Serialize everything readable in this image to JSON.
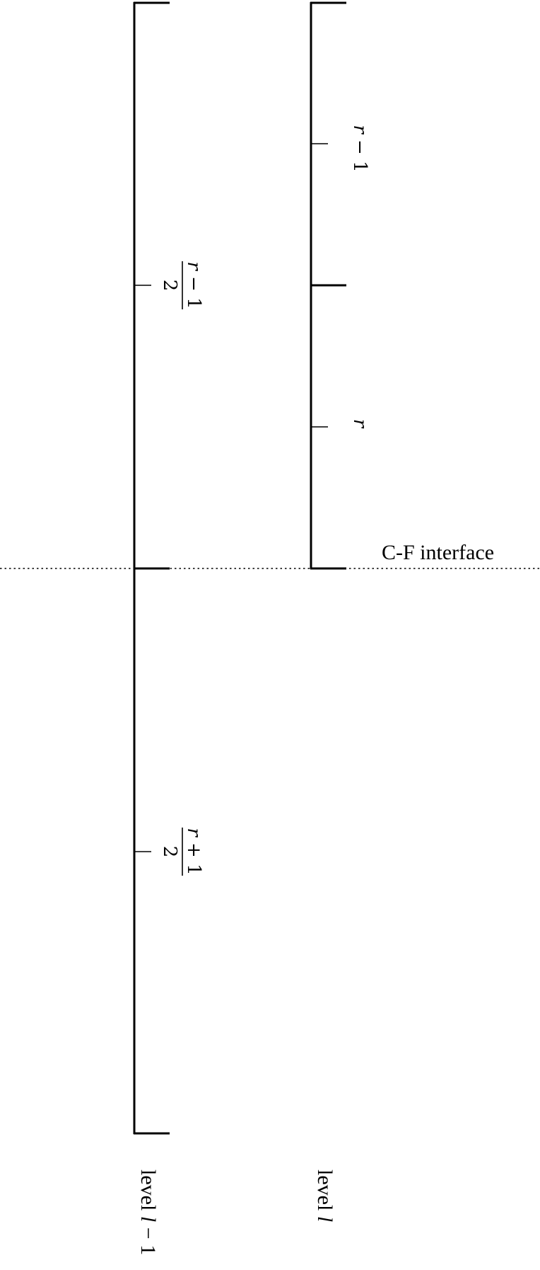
{
  "interface_label": "C-F interface",
  "levels": {
    "coarse": {
      "prefix": "level ",
      "var": "l",
      "suffix": " − 1"
    },
    "fine": {
      "prefix": "level ",
      "var": "l"
    }
  },
  "coarse_cells": [
    {
      "numerator_var": "r",
      "numerator_rest": " − 1",
      "denominator": "2"
    },
    {
      "numerator_var": "r",
      "numerator_rest": " + 1",
      "denominator": "2"
    }
  ],
  "fine_cells": [
    {
      "var": "r",
      "rest": " − 1"
    },
    {
      "var": "r",
      "rest": ""
    }
  ]
}
